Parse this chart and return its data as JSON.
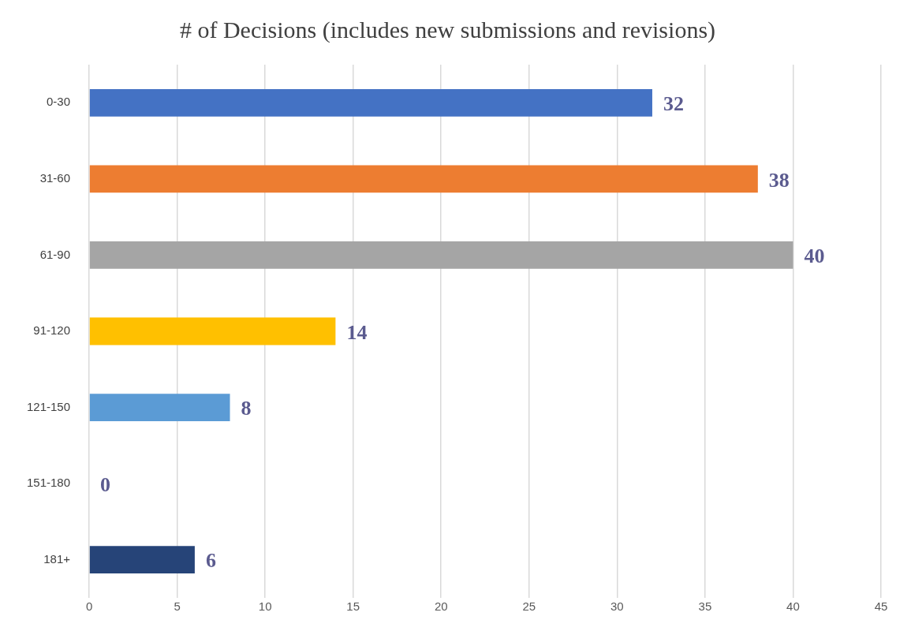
{
  "chart_data": {
    "type": "bar",
    "orientation": "horizontal",
    "title": "# of Decisions (includes new submissions and revisions)",
    "categories": [
      "0-30",
      "31-60",
      "61-90",
      "91-120",
      "121-150",
      "151-180",
      "181+"
    ],
    "values": [
      32,
      38,
      40,
      14,
      8,
      0,
      6
    ],
    "colors": [
      "#4472c4",
      "#ed7d31",
      "#a5a5a5",
      "#ffc000",
      "#5b9bd5",
      "#70ad47",
      "#264478"
    ],
    "xlim": [
      0,
      45
    ],
    "xticks": [
      0,
      5,
      10,
      15,
      20,
      25,
      30,
      35,
      40,
      45
    ],
    "grid": "x",
    "data_labels": true,
    "legend": false
  }
}
